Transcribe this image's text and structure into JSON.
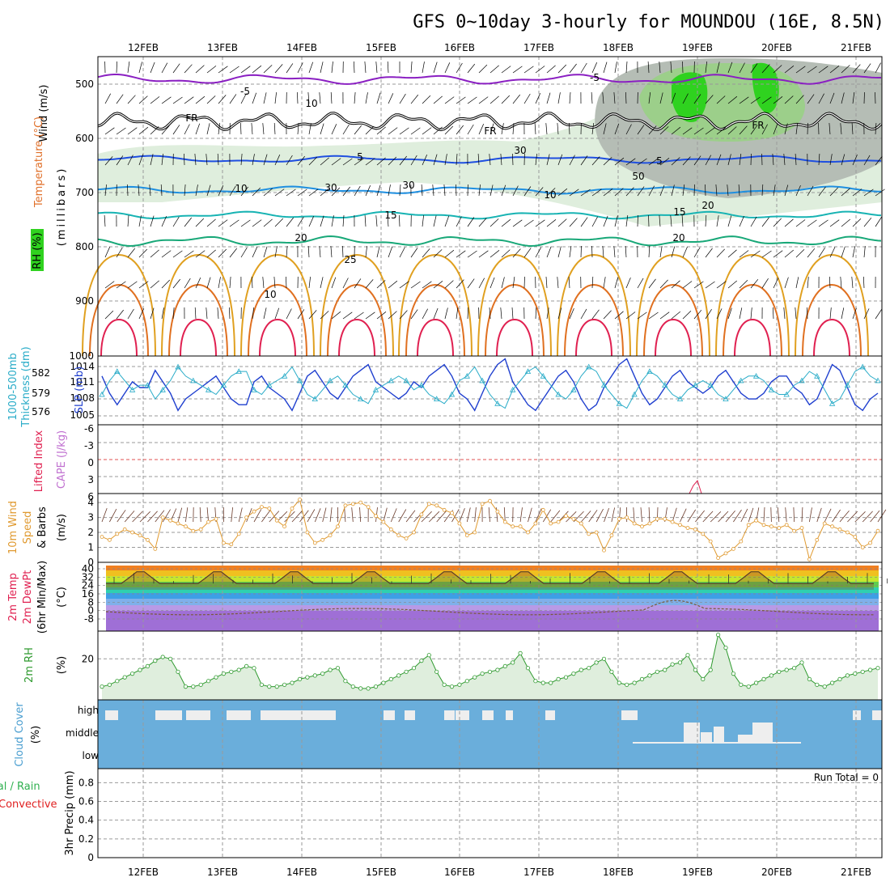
{
  "title": "GFS 0~10day 3-hourly for MOUNDOU (16E, 8.5N)",
  "date_labels": [
    "12FEB",
    "13FEB",
    "14FEB",
    "15FEB",
    "16FEB",
    "17FEB",
    "18FEB",
    "19FEB",
    "20FEB",
    "21FEB"
  ],
  "colors": {
    "temp_minus5": "#8a1fc2",
    "temp_5": "#1f4fe0",
    "temp_10": "#1f8fe0",
    "temp_15": "#17b3b3",
    "temp_20": "#18a878",
    "temp_25": "#e0a020",
    "temp_30": "#e07020",
    "temp_35": "#e02050",
    "rh_light": "#dfeedd",
    "rh_mid": "#9ccf8a",
    "rh_dark": "#2fd21f",
    "grey_rh": "#b5bdb5",
    "thickness": "#2aacc8",
    "slp": "#1f3fcf",
    "wind10": "#e09a30",
    "rh2m": "#2f9a2f",
    "cloud": "#6aaedb",
    "cloud_clear": "#eeeeee",
    "precip_total": "#2fb04f",
    "precip_conv": "#e02020"
  },
  "panels": {
    "upper": {
      "label_wind": "Wind (m/s)",
      "label_temp": "Temperature (°C)",
      "label_rh": "RH (%)",
      "label_mb": "(millibars)",
      "ticks": [
        "500",
        "600",
        "700",
        "800",
        "900",
        "1000"
      ],
      "contour_labels": [
        "-5",
        "-5",
        "5",
        "5",
        "10",
        "10",
        "15",
        "15",
        "20",
        "20",
        "25",
        "FR",
        "FR",
        "FR",
        "10",
        "30",
        "30",
        "30",
        "50",
        "20",
        "10"
      ]
    },
    "slp": {
      "label_thick_a": "1000-500mb",
      "label_thick_b": "Thickness (dm)",
      "label_slp": "SLP (mb)",
      "left_ticks": [
        "582",
        "579",
        "576"
      ],
      "right_ticks": [
        "1014",
        "1011",
        "1008",
        "1005"
      ]
    },
    "cape": {
      "label_li": "Lifted Index",
      "label_cape": "CAPE (J/kg)",
      "ticks": [
        "-6",
        "-3",
        "0",
        "3",
        "6"
      ]
    },
    "wind10": {
      "label_a": "10m Wind",
      "label_b": "Speed",
      "label_c": "& Barbs",
      "label_unit": "(m/s)",
      "ticks": [
        "4",
        "3",
        "2",
        "1",
        "0"
      ]
    },
    "temp2m": {
      "label_a": "2m Temp",
      "label_b": "2m DewPt",
      "label_c": "(6hr Min/Max)",
      "label_unit": "(°C)",
      "ticks": [
        "40",
        "32",
        "24",
        "16",
        "8",
        "0",
        "-8"
      ]
    },
    "rh2m": {
      "label_a": "2m RH",
      "label_unit": "(%)",
      "ticks": [
        "20"
      ]
    },
    "cloud": {
      "label_a": "Cloud Cover",
      "label_unit": "(%)",
      "levels": [
        "high",
        "middle",
        "low"
      ]
    },
    "precip": {
      "label_a": "Total / Rain",
      "label_b": "Convective",
      "label_c": "3hr Precip (mm)",
      "ticks": [
        "0.8",
        "0.6",
        "0.4",
        "0.2",
        "0"
      ],
      "run_total": "Run Total = 0"
    }
  },
  "chart_data": [
    {
      "type": "line",
      "name": "10m wind speed",
      "ylabel": "10m Wind Speed & Barbs (m/s)",
      "ylim": [
        0,
        4.6
      ],
      "values": [
        1.7,
        1.5,
        1.9,
        2.2,
        2.0,
        1.8,
        1.5,
        0.9,
        3.0,
        2.8,
        2.6,
        2.4,
        2.1,
        2.2,
        2.7,
        2.9,
        1.3,
        1.2,
        1.9,
        3.0,
        3.4,
        3.7,
        3.6,
        2.8,
        2.4,
        3.6,
        4.2,
        2.0,
        1.3,
        1.5,
        1.8,
        2.4,
        3.8,
        3.9,
        4.0,
        3.7,
        3.1,
        2.7,
        2.2,
        1.8,
        1.6,
        2.0,
        3.2,
        3.9,
        3.8,
        3.5,
        3.3,
        2.6,
        1.8,
        2.0,
        3.9,
        4.1,
        3.4,
        2.7,
        2.4,
        2.4,
        2.0,
        2.6,
        3.5,
        2.6,
        2.7,
        3.1,
        2.9,
        2.6,
        1.9,
        2.0,
        0.8,
        1.8,
        2.9,
        3.0,
        2.6,
        2.4,
        2.6,
        2.9,
        2.9,
        2.7,
        2.5,
        2.3,
        2.2,
        1.9,
        1.4,
        0.3,
        0.6,
        0.9,
        1.4,
        2.5,
        2.8,
        2.5,
        2.4,
        2.3,
        2.5,
        2.1,
        2.3,
        0.2,
        1.5,
        2.6,
        2.4,
        2.2,
        2.0,
        1.7,
        1.0,
        1.3,
        2.1
      ]
    },
    {
      "type": "line",
      "name": "2m RH",
      "ylabel": "2m RH (%)",
      "ylim": [
        0,
        35
      ],
      "values": [
        5,
        6,
        8,
        10,
        12,
        14,
        16,
        19,
        21,
        20,
        13,
        5,
        5,
        6,
        8,
        10,
        12,
        13,
        14,
        16,
        15,
        6,
        5,
        5,
        6,
        7,
        9,
        10,
        11,
        12,
        14,
        15,
        8,
        5,
        4,
        4,
        5,
        7,
        9,
        11,
        13,
        15,
        19,
        22,
        13,
        6,
        5,
        6,
        8,
        10,
        12,
        13,
        14,
        16,
        18,
        23,
        15,
        8,
        7,
        7,
        9,
        10,
        12,
        14,
        15,
        18,
        20,
        13,
        7,
        6,
        7,
        9,
        11,
        13,
        14,
        17,
        18,
        22,
        14,
        9,
        14,
        33,
        26,
        12,
        6,
        5,
        7,
        9,
        11,
        13,
        14,
        15,
        18,
        9,
        6,
        5,
        7,
        9,
        11,
        12,
        13,
        14,
        15
      ]
    },
    {
      "type": "line",
      "name": "SLP and 1000-500mb Thickness",
      "ylabel": "SLP (mb)",
      "ylim": [
        1003.5,
        1015.5
      ],
      "values": [
        1012,
        1009,
        1007,
        1009,
        1011,
        1010,
        1010,
        1013,
        1011,
        1009,
        1006,
        1008,
        1009,
        1010,
        1011,
        1012,
        1010,
        1008,
        1007,
        1007,
        1011,
        1012,
        1010,
        1009,
        1008,
        1006,
        1009,
        1012,
        1013,
        1011,
        1009,
        1008,
        1010,
        1012,
        1013,
        1014,
        1011,
        1010,
        1009,
        1008,
        1009,
        1011,
        1010,
        1012,
        1013,
        1014,
        1012,
        1009,
        1008,
        1006,
        1009,
        1012,
        1014,
        1015,
        1011,
        1009,
        1007,
        1006,
        1008,
        1010,
        1012,
        1013,
        1011,
        1008,
        1006,
        1007,
        1010,
        1012,
        1014,
        1015,
        1012,
        1009,
        1007,
        1008,
        1010,
        1012,
        1013,
        1011,
        1010,
        1009,
        1010,
        1012,
        1013,
        1011,
        1009,
        1008,
        1008,
        1009,
        1011,
        1012,
        1012,
        1010,
        1009,
        1007,
        1008,
        1011,
        1014,
        1013,
        1010,
        1007,
        1006,
        1008,
        1009
      ]
    },
    {
      "type": "bar",
      "name": "3hr Precip",
      "ylabel": "3hr Precip (mm)",
      "ylim": [
        0,
        0.95
      ],
      "values": [
        0
      ]
    }
  ]
}
